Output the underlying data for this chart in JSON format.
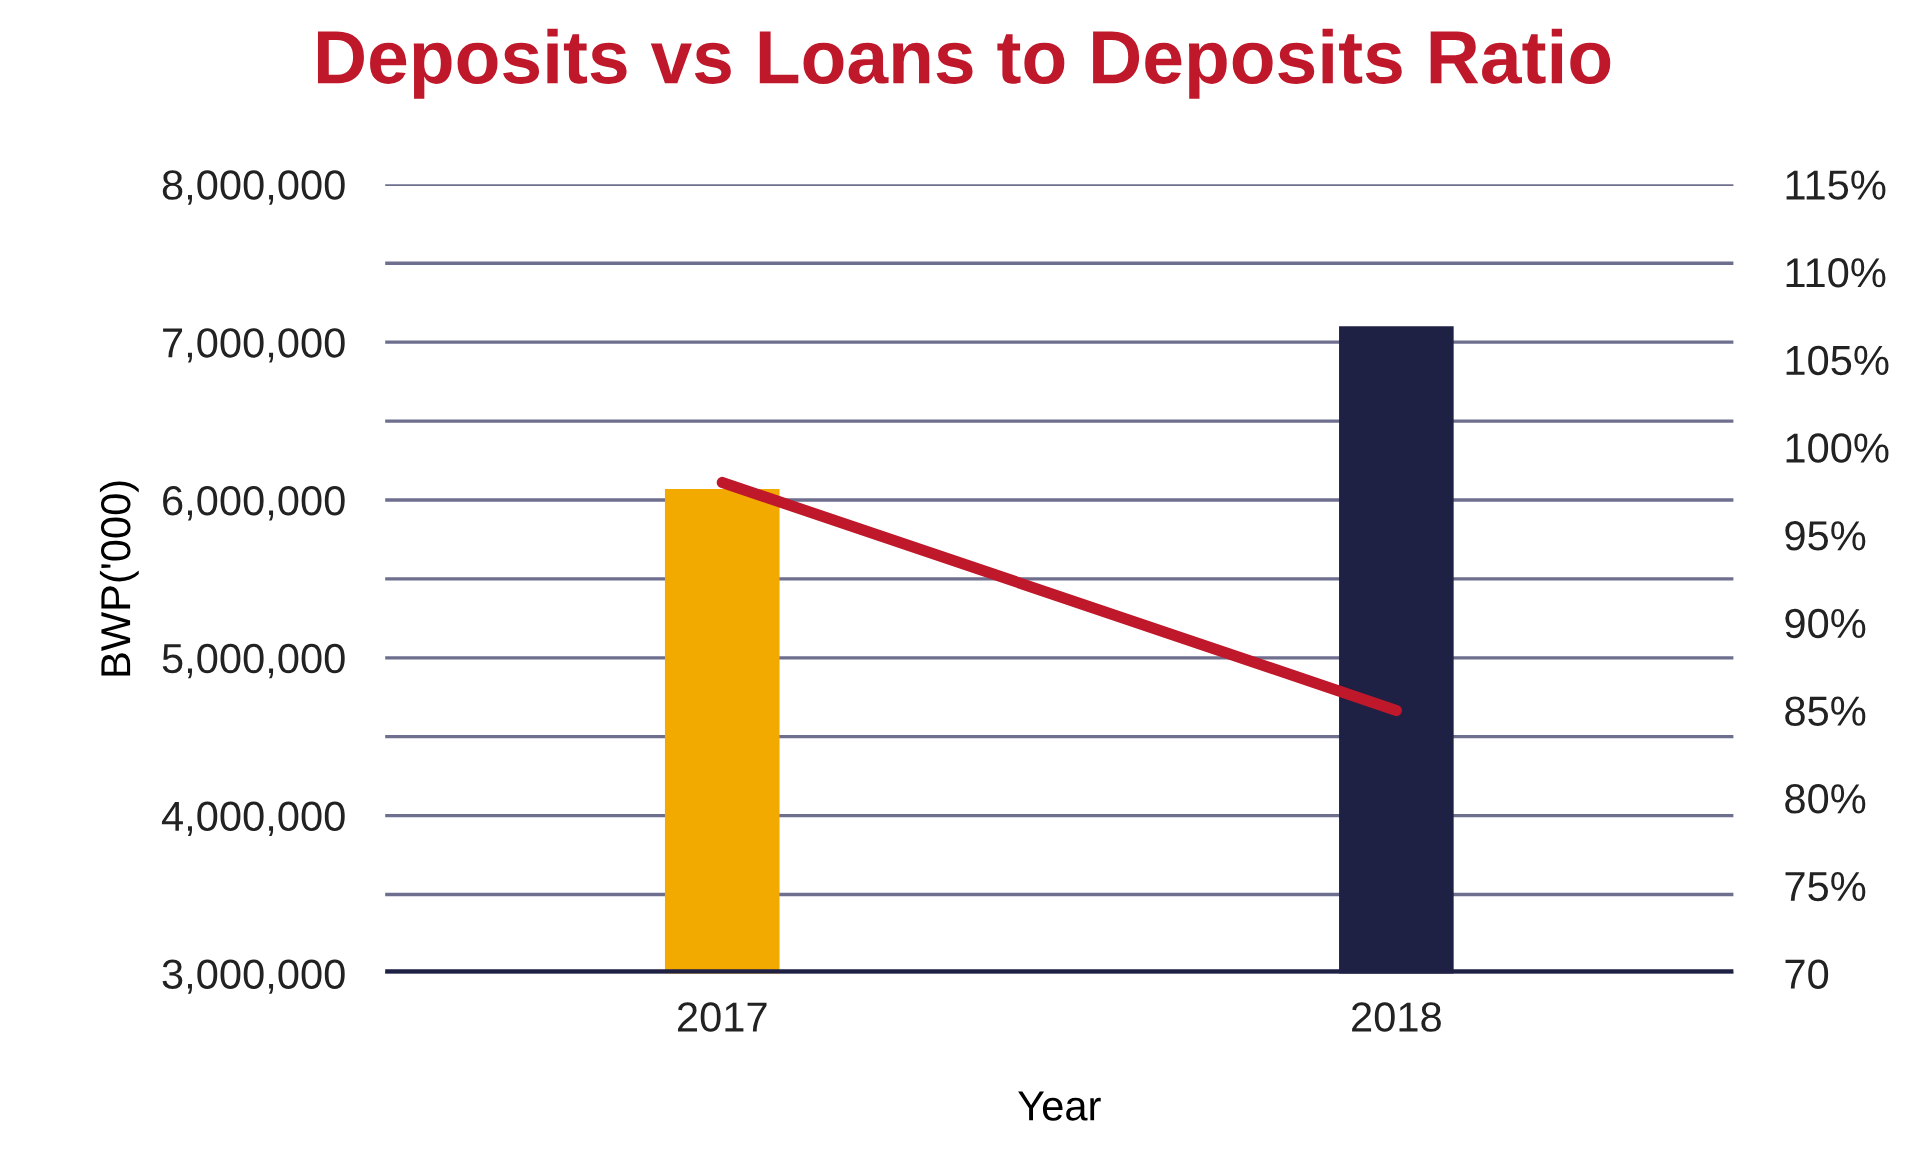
{
  "chart_data": {
    "type": "bar",
    "title": "Deposits vs Loans to Deposits Ratio",
    "xlabel": "Year",
    "ylabel": "BWP('000)",
    "categories": [
      "2017",
      "2018"
    ],
    "series": [
      {
        "colors": [
          "#f2a900",
          "#1e2044"
        ],
        "values": [
          6070000,
          7100000
        ]
      },
      {
        "type": "line",
        "axis": "y2",
        "color": "#c0182b",
        "values": [
          98,
          85
        ]
      }
    ],
    "ylim": [
      3000000,
      8000000
    ],
    "yticks": [
      {
        "value": 3000000,
        "label": "3,000,000"
      },
      {
        "value": 3500000,
        "label": null
      },
      {
        "value": 4000000,
        "label": "4,000,000"
      },
      {
        "value": 4500000,
        "label": null
      },
      {
        "value": 5000000,
        "label": "5,000,000"
      },
      {
        "value": 5500000,
        "label": null
      },
      {
        "value": 6000000,
        "label": "6,000,000"
      },
      {
        "value": 6500000,
        "label": null
      },
      {
        "value": 7000000,
        "label": "7,000,000"
      },
      {
        "value": 7500000,
        "label": null
      },
      {
        "value": 8000000,
        "label": "8,000,000"
      }
    ],
    "y2lim": [
      70,
      115
    ],
    "y2ticks": [
      70,
      {
        "value": 75,
        "label": "75%"
      },
      {
        "value": 80,
        "label": "80%"
      },
      {
        "value": 85,
        "label": "85%"
      },
      {
        "value": 90,
        "label": "90%"
      },
      {
        "value": 95,
        "label": "95%"
      },
      {
        "value": 100,
        "label": "100%"
      },
      {
        "value": 105,
        "label": "105%"
      },
      {
        "value": 110,
        "label": "110%"
      },
      {
        "value": 115,
        "label": "115%"
      }
    ],
    "grid": "y",
    "legend": false,
    "marker": "none",
    "line_style": "solid"
  }
}
